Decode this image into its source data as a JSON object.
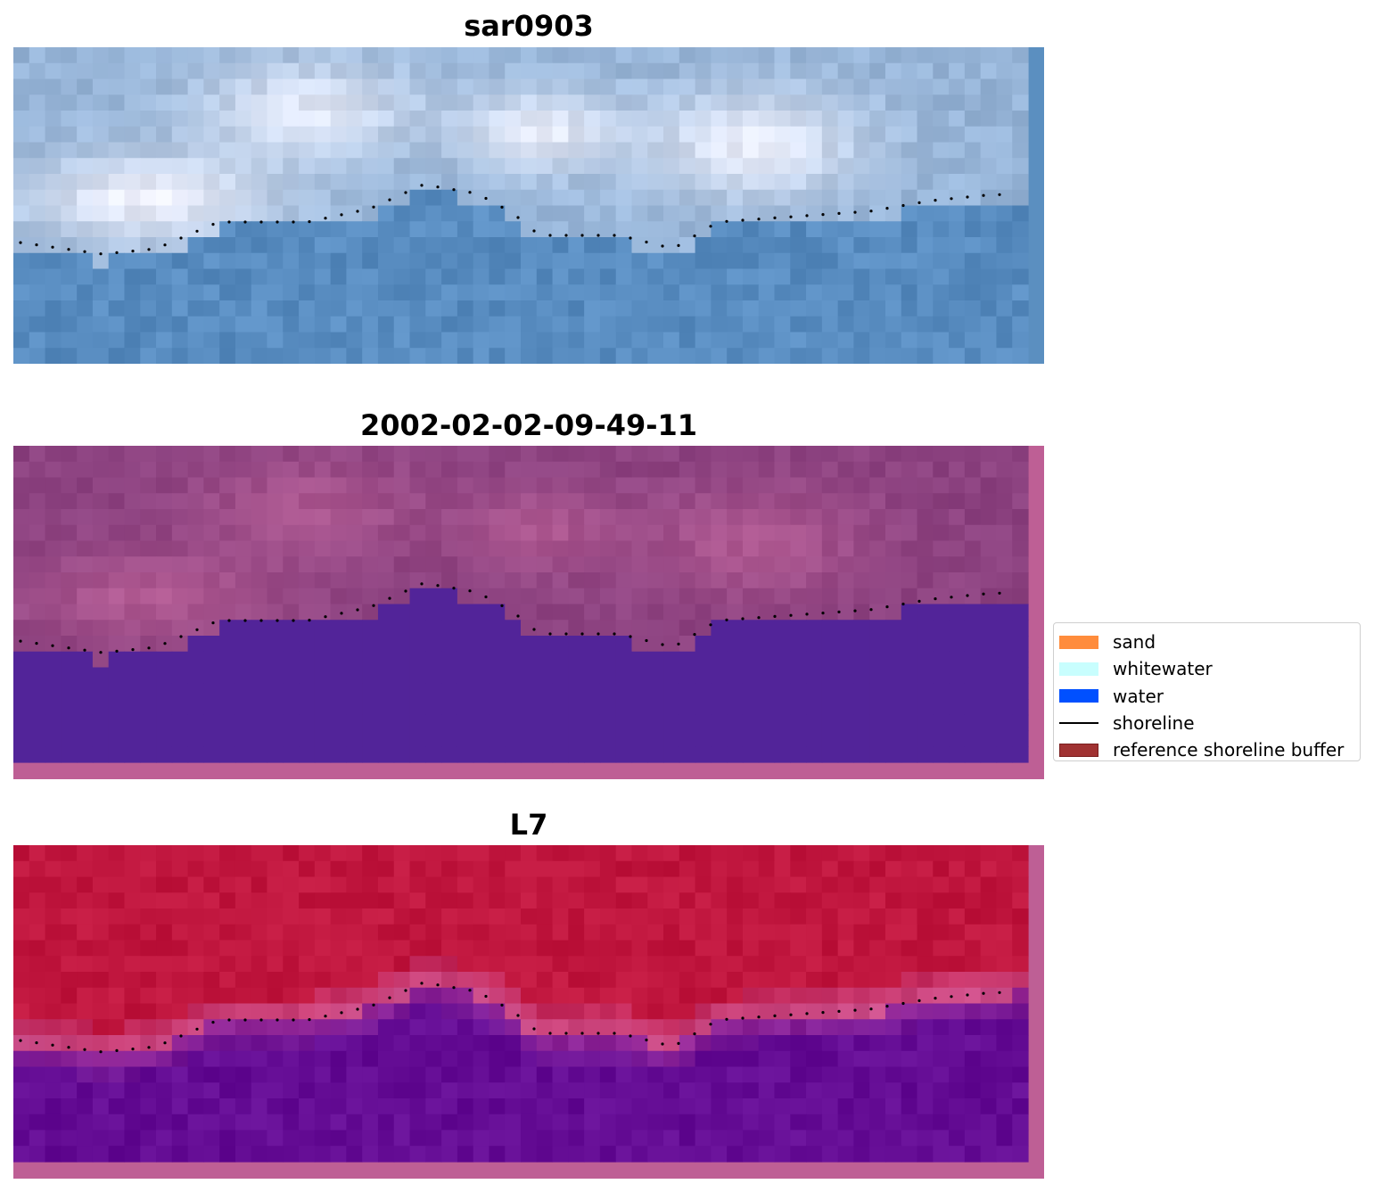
{
  "panels": [
    {
      "id": "sar",
      "title": "sar0903"
    },
    {
      "id": "classified",
      "title": "2002-02-02-09-49-11"
    },
    {
      "id": "ndwi",
      "title": "L7"
    }
  ],
  "legend": {
    "items": [
      {
        "label": "sand",
        "color": "#ff8c3c",
        "kind": "patch"
      },
      {
        "label": "whitewater",
        "color": "#c8fefe",
        "kind": "patch"
      },
      {
        "label": "water",
        "color": "#0050ff",
        "kind": "patch"
      },
      {
        "label": "shoreline",
        "color": "#000000",
        "kind": "line"
      },
      {
        "label": "reference shoreline buffer",
        "color": "#a03232",
        "kind": "patch"
      }
    ]
  },
  "colors": {
    "buffer_pink": "#be5f95",
    "classified_water": "#522499",
    "ndwi_land": "#c0143c",
    "ndwi_water": "#62098f"
  }
}
